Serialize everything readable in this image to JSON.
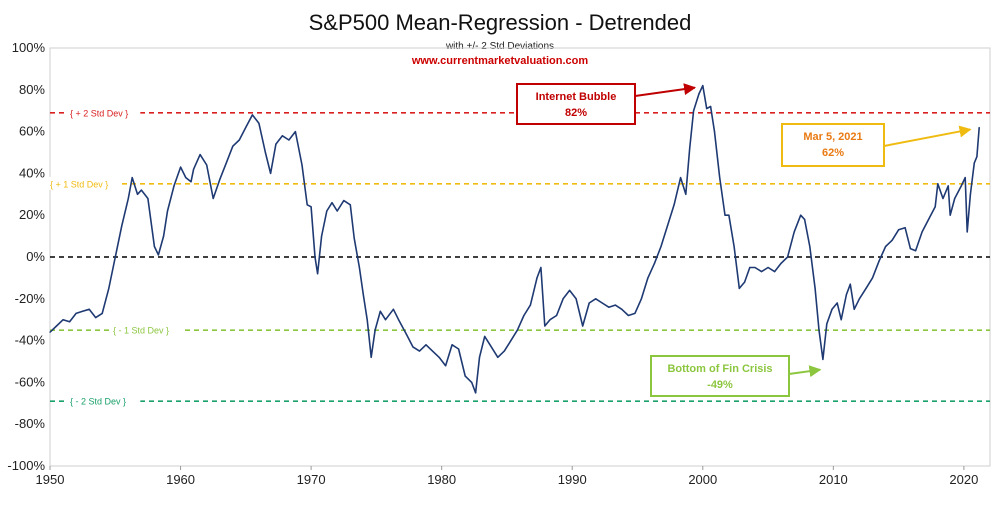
{
  "chart_data": {
    "type": "line",
    "title": "S&P500 Mean-Regression - Detrended",
    "subtitle": "with +/- 2 Std Deviations",
    "source": "www.currentmarketvaluation.com",
    "xlabel": "",
    "ylabel": "",
    "xlim": [
      1950,
      2022
    ],
    "ylim": [
      -100,
      100
    ],
    "x_ticks": [
      "1950",
      "1960",
      "1970",
      "1980",
      "1990",
      "2000",
      "2010",
      "2020"
    ],
    "y_ticks": [
      "100%",
      "80%",
      "60%",
      "40%",
      "20%",
      "0%",
      "-20%",
      "-40%",
      "-60%",
      "-80%",
      "-100%"
    ],
    "series": [
      {
        "name": "S&P500 Detrended",
        "color": "#1f3a73",
        "points": [
          [
            1950.0,
            -36
          ],
          [
            1950.5,
            -33
          ],
          [
            1951.0,
            -30
          ],
          [
            1951.5,
            -31
          ],
          [
            1952.0,
            -27
          ],
          [
            1952.5,
            -26
          ],
          [
            1953.0,
            -25
          ],
          [
            1953.5,
            -29
          ],
          [
            1954.0,
            -27
          ],
          [
            1954.5,
            -15
          ],
          [
            1955.0,
            0
          ],
          [
            1955.5,
            15
          ],
          [
            1956.0,
            28
          ],
          [
            1956.3,
            38
          ],
          [
            1956.7,
            30
          ],
          [
            1957.0,
            32
          ],
          [
            1957.5,
            28
          ],
          [
            1958.0,
            5
          ],
          [
            1958.3,
            1
          ],
          [
            1958.7,
            10
          ],
          [
            1959.0,
            22
          ],
          [
            1959.5,
            34
          ],
          [
            1960.0,
            43
          ],
          [
            1960.4,
            38
          ],
          [
            1960.8,
            36
          ],
          [
            1961.0,
            42
          ],
          [
            1961.5,
            49
          ],
          [
            1962.0,
            44
          ],
          [
            1962.5,
            28
          ],
          [
            1963.0,
            37
          ],
          [
            1963.5,
            45
          ],
          [
            1964.0,
            53
          ],
          [
            1964.5,
            56
          ],
          [
            1965.0,
            62
          ],
          [
            1965.5,
            68
          ],
          [
            1966.0,
            64
          ],
          [
            1966.5,
            50
          ],
          [
            1966.9,
            40
          ],
          [
            1967.3,
            54
          ],
          [
            1967.8,
            58
          ],
          [
            1968.3,
            56
          ],
          [
            1968.8,
            60
          ],
          [
            1969.3,
            44
          ],
          [
            1969.7,
            25
          ],
          [
            1970.0,
            24
          ],
          [
            1970.3,
            0
          ],
          [
            1970.5,
            -8
          ],
          [
            1970.8,
            10
          ],
          [
            1971.2,
            22
          ],
          [
            1971.6,
            26
          ],
          [
            1972.0,
            22
          ],
          [
            1972.5,
            27
          ],
          [
            1973.0,
            25
          ],
          [
            1973.3,
            9
          ],
          [
            1973.7,
            -5
          ],
          [
            1974.0,
            -18
          ],
          [
            1974.3,
            -30
          ],
          [
            1974.6,
            -48
          ],
          [
            1974.9,
            -35
          ],
          [
            1975.3,
            -26
          ],
          [
            1975.7,
            -30
          ],
          [
            1976.3,
            -25
          ],
          [
            1976.7,
            -30
          ],
          [
            1977.3,
            -37
          ],
          [
            1977.8,
            -43
          ],
          [
            1978.3,
            -45
          ],
          [
            1978.8,
            -42
          ],
          [
            1979.3,
            -45
          ],
          [
            1979.8,
            -48
          ],
          [
            1980.3,
            -52
          ],
          [
            1980.8,
            -42
          ],
          [
            1981.3,
            -44
          ],
          [
            1981.8,
            -57
          ],
          [
            1982.3,
            -60
          ],
          [
            1982.6,
            -65
          ],
          [
            1982.9,
            -48
          ],
          [
            1983.3,
            -38
          ],
          [
            1983.7,
            -42
          ],
          [
            1984.3,
            -48
          ],
          [
            1984.8,
            -45
          ],
          [
            1985.3,
            -40
          ],
          [
            1985.8,
            -35
          ],
          [
            1986.3,
            -28
          ],
          [
            1986.8,
            -23
          ],
          [
            1987.3,
            -10
          ],
          [
            1987.6,
            -5
          ],
          [
            1987.9,
            -33
          ],
          [
            1988.3,
            -30
          ],
          [
            1988.8,
            -28
          ],
          [
            1989.3,
            -20
          ],
          [
            1989.8,
            -16
          ],
          [
            1990.3,
            -20
          ],
          [
            1990.8,
            -33
          ],
          [
            1991.3,
            -22
          ],
          [
            1991.8,
            -20
          ],
          [
            1992.3,
            -22
          ],
          [
            1992.8,
            -24
          ],
          [
            1993.3,
            -23
          ],
          [
            1993.8,
            -25
          ],
          [
            1994.3,
            -28
          ],
          [
            1994.8,
            -27
          ],
          [
            1995.3,
            -20
          ],
          [
            1995.8,
            -10
          ],
          [
            1996.3,
            -3
          ],
          [
            1996.8,
            5
          ],
          [
            1997.3,
            15
          ],
          [
            1997.8,
            25
          ],
          [
            1998.3,
            38
          ],
          [
            1998.7,
            30
          ],
          [
            1999.0,
            52
          ],
          [
            1999.3,
            70
          ],
          [
            1999.7,
            78
          ],
          [
            2000.0,
            82
          ],
          [
            2000.3,
            71
          ],
          [
            2000.6,
            72
          ],
          [
            2000.9,
            60
          ],
          [
            2001.3,
            38
          ],
          [
            2001.7,
            20
          ],
          [
            2002.0,
            20
          ],
          [
            2002.4,
            5
          ],
          [
            2002.8,
            -15
          ],
          [
            2003.2,
            -12
          ],
          [
            2003.6,
            -5
          ],
          [
            2004.0,
            -5
          ],
          [
            2004.5,
            -7
          ],
          [
            2005.0,
            -5
          ],
          [
            2005.5,
            -7
          ],
          [
            2006.0,
            -3
          ],
          [
            2006.5,
            0
          ],
          [
            2007.0,
            12
          ],
          [
            2007.5,
            20
          ],
          [
            2007.8,
            18
          ],
          [
            2008.2,
            5
          ],
          [
            2008.6,
            -15
          ],
          [
            2008.9,
            -35
          ],
          [
            2009.2,
            -49
          ],
          [
            2009.5,
            -32
          ],
          [
            2009.9,
            -25
          ],
          [
            2010.3,
            -22
          ],
          [
            2010.6,
            -30
          ],
          [
            2011.0,
            -18
          ],
          [
            2011.3,
            -13
          ],
          [
            2011.6,
            -25
          ],
          [
            2012.0,
            -20
          ],
          [
            2012.5,
            -15
          ],
          [
            2013.0,
            -10
          ],
          [
            2013.5,
            -2
          ],
          [
            2014.0,
            5
          ],
          [
            2014.5,
            8
          ],
          [
            2015.0,
            13
          ],
          [
            2015.5,
            14
          ],
          [
            2015.9,
            4
          ],
          [
            2016.3,
            3
          ],
          [
            2016.8,
            12
          ],
          [
            2017.3,
            18
          ],
          [
            2017.8,
            24
          ],
          [
            2018.0,
            35
          ],
          [
            2018.4,
            28
          ],
          [
            2018.8,
            34
          ],
          [
            2018.95,
            20
          ],
          [
            2019.3,
            28
          ],
          [
            2019.8,
            34
          ],
          [
            2020.1,
            38
          ],
          [
            2020.25,
            12
          ],
          [
            2020.5,
            30
          ],
          [
            2020.8,
            45
          ],
          [
            2021.0,
            48
          ],
          [
            2021.17,
            62
          ]
        ]
      }
    ],
    "reference_lines": [
      {
        "label": "+ 2 Std Dev",
        "value": 69,
        "color": "#d92020",
        "style": "dashed"
      },
      {
        "label": "+ 1 Std Dev",
        "value": 35,
        "color": "#f0bb10",
        "style": "dashed"
      },
      {
        "label": "",
        "value": 0,
        "color": "#000000",
        "style": "dashed"
      },
      {
        "label": "- 1 Std Dev",
        "value": -35,
        "color": "#8cc63f",
        "style": "dashed"
      },
      {
        "label": "- 2 Std Dev",
        "value": -69,
        "color": "#1aa06a",
        "style": "dashed"
      }
    ],
    "annotations": [
      {
        "line1": "Internet Bubble",
        "line2": "82%",
        "color": "#c00000",
        "text_color": "#c00000",
        "target": [
          1999.7,
          82
        ]
      },
      {
        "line1": "Mar 5, 2021",
        "line2": "62%",
        "color": "#f0bb10",
        "text_color": "#e97a12",
        "target": [
          2020.8,
          62
        ]
      },
      {
        "line1": "Bottom of Fin Crisis",
        "line2": "-49%",
        "color": "#8cc63f",
        "text_color": "#8cc63f",
        "target": [
          2009.3,
          -52
        ]
      }
    ]
  }
}
